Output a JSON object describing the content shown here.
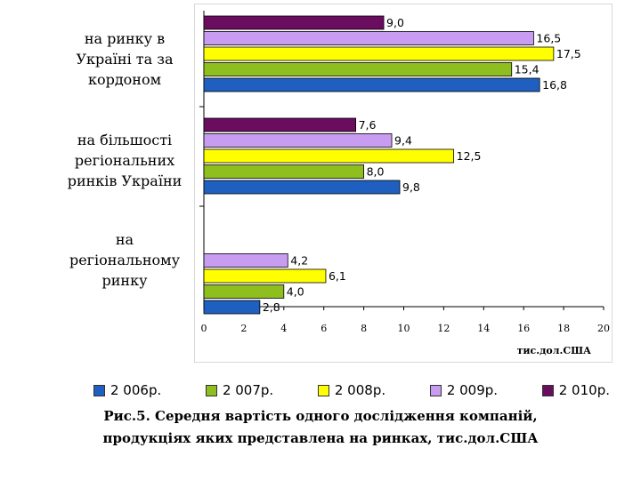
{
  "chart_data": {
    "type": "bar",
    "orientation": "horizontal",
    "categories": [
      [
        "на ринку в",
        "Україні та за",
        "кордоном"
      ],
      [
        "на більшості",
        "регіональних",
        "ринків України"
      ],
      [
        "на",
        "регіональному",
        "ринку"
      ]
    ],
    "series": [
      {
        "name": "2 006р.",
        "color": "#1f5fbf",
        "values": [
          16.8,
          9.8,
          2.8
        ],
        "labels": [
          "16,8",
          "9,8",
          "2,8"
        ]
      },
      {
        "name": "2 007р.",
        "color": "#8fbf1f",
        "values": [
          15.4,
          8.0,
          4.0
        ],
        "labels": [
          "15,4",
          "8,0",
          "4,0"
        ]
      },
      {
        "name": "2 008р.",
        "color": "#ffff00",
        "values": [
          17.5,
          12.5,
          6.1
        ],
        "labels": [
          "17,5",
          "12,5",
          "6,1"
        ]
      },
      {
        "name": "2 009р.",
        "color": "#c89cf0",
        "values": [
          16.5,
          9.4,
          4.2
        ],
        "labels": [
          "16,5",
          "9,4",
          "4,2"
        ]
      },
      {
        "name": "2 010р.",
        "color": "#6a0d5f",
        "values": [
          9.0,
          7.6,
          null
        ],
        "labels": [
          "9,0",
          "7,6",
          ""
        ]
      }
    ],
    "xlim": [
      0,
      20
    ],
    "xticks": [
      "0",
      "2",
      "4",
      "6",
      "8",
      "10",
      "12",
      "14",
      "16",
      "18",
      "20"
    ],
    "xlabel": "тис.дол.США",
    "legend_position": "bottom"
  },
  "caption": {
    "line1": "Рис.5. Середня вартість одного дослідження компаній,",
    "line2": "продукціях яких представлена на ринках, тис.дол.США"
  }
}
